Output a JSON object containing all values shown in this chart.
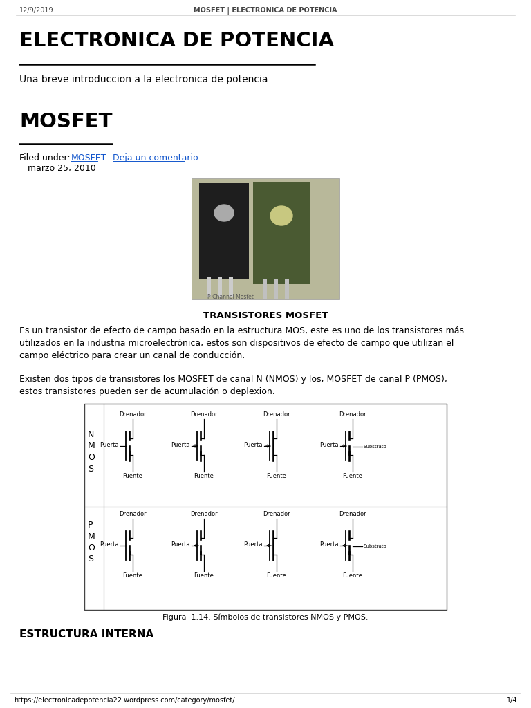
{
  "bg_color": "#ffffff",
  "header_date": "12/9/2019",
  "header_title": "MOSFET | ELECTRONICA DE POTENCIA",
  "main_title": "ELECTRONICA DE POTENCIA",
  "subtitle": "Una breve introduccion a la electronica de potencia",
  "post_title": "MOSFET",
  "filed_text": "Filed under: ",
  "filed_link1": "MOSFET",
  "filed_dash": " — ",
  "filed_link2": "Deja un comentario",
  "date_text": "   marzo 25, 2010",
  "transistores_title": "TRANSISTORES MOSFET",
  "para1": "Es un transistor de efecto de campo basado en la estructura MOS, este es uno de los transistores más\nutilizados en la industria microelectrónica, estos son dispositivos de efecto de campo que utilizan el\ncampo eléctrico para crear un canal de conducción.",
  "para2": "Existen dos tipos de transistores los MOSFET de canal N (NMOS) y los, MOSFET de canal P (PMOS),\nestos transistores pueden ser de acumulación o deplexion.",
  "figura_caption": "Figura  1.14. Símbolos de transistores NMOS y PMOS.",
  "estructura_title": "ESTRUCTURA INTERNA",
  "footer_url": "https://electronicadepotencia22.wordpress.com/category/mosfet/",
  "footer_page": "1/4",
  "link_color": "#1155cc",
  "text_color": "#000000",
  "header_color": "#444444"
}
